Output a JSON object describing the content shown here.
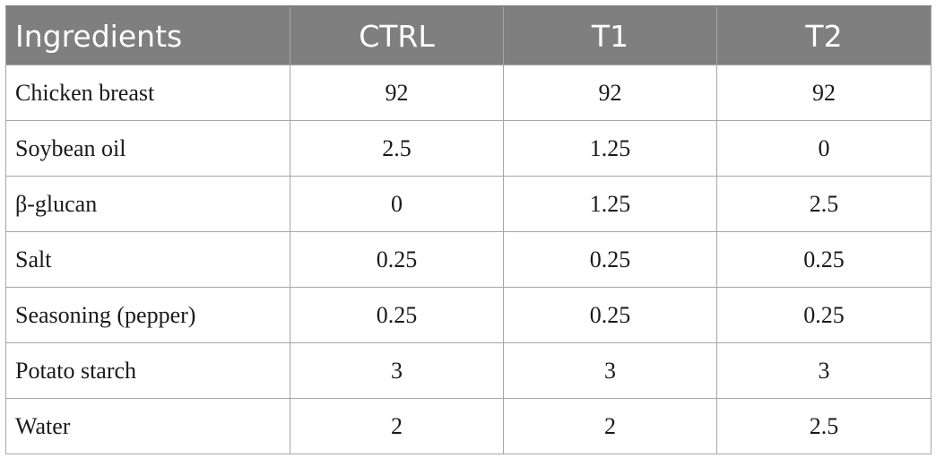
{
  "table": {
    "headers": [
      "Ingredients",
      "CTRL",
      "T1",
      "T2"
    ],
    "rows": [
      [
        "Chicken breast",
        "92",
        "92",
        "92"
      ],
      [
        "Soybean oil",
        "2.5",
        "1.25",
        "0"
      ],
      [
        "β-glucan",
        "0",
        "1.25",
        "2.5"
      ],
      [
        "Salt",
        "0.25",
        "0.25",
        "0.25"
      ],
      [
        "Seasoning (pepper)",
        "0.25",
        "0.25",
        "0.25"
      ],
      [
        "Potato starch",
        "3",
        "3",
        "3"
      ],
      [
        "Water",
        "2",
        "2",
        "2.5"
      ]
    ]
  },
  "colors": {
    "header_background": "#7f7f7f",
    "header_text": "#ffffff",
    "border": "#a6a6a6",
    "body_text": "#1a1a1a"
  }
}
